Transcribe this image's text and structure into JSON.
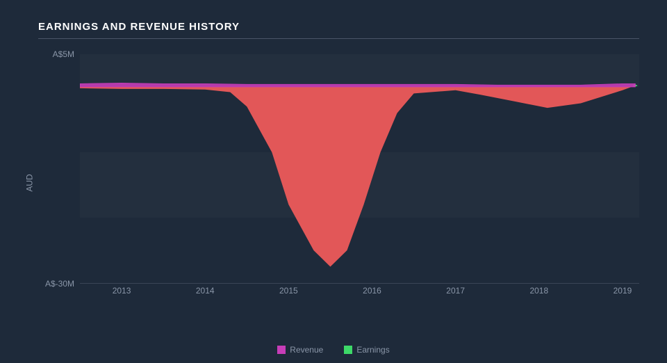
{
  "chart": {
    "type": "area",
    "title": "EARNINGS AND REVENUE HISTORY",
    "background_color": "#1e2a3a",
    "grid_band_color": "rgba(255,255,255,0.025)",
    "axis_text_color": "#8a96a8",
    "title_color": "#ffffff",
    "title_fontsize": 15,
    "label_fontsize": 12,
    "y_axis": {
      "label": "AUD",
      "min": -30,
      "max": 5,
      "ticks": [
        {
          "value": 5,
          "label": "A$5M"
        },
        {
          "value": -30,
          "label": "A$-30M"
        }
      ]
    },
    "x_axis": {
      "min": 2012.5,
      "max": 2019.2,
      "ticks": [
        {
          "value": 2013,
          "label": "2013"
        },
        {
          "value": 2014,
          "label": "2014"
        },
        {
          "value": 2015,
          "label": "2015"
        },
        {
          "value": 2016,
          "label": "2016"
        },
        {
          "value": 2017,
          "label": "2017"
        },
        {
          "value": 2018,
          "label": "2018"
        },
        {
          "value": 2019,
          "label": "2019"
        }
      ]
    },
    "grid_bands": [
      {
        "from": 5,
        "to": 0
      },
      {
        "from": -10,
        "to": -20
      }
    ],
    "series": [
      {
        "name": "Revenue",
        "color": "#c73db8",
        "fill_opacity": 0.9,
        "stroke_width": 1.5,
        "data": [
          {
            "x": 2012.5,
            "y": 0.5
          },
          {
            "x": 2013,
            "y": 0.6
          },
          {
            "x": 2013.5,
            "y": 0.5
          },
          {
            "x": 2014,
            "y": 0.5
          },
          {
            "x": 2014.5,
            "y": 0.4
          },
          {
            "x": 2015,
            "y": 0.4
          },
          {
            "x": 2015.5,
            "y": 0.4
          },
          {
            "x": 2016,
            "y": 0.4
          },
          {
            "x": 2016.5,
            "y": 0.4
          },
          {
            "x": 2017,
            "y": 0.4
          },
          {
            "x": 2017.5,
            "y": 0.3
          },
          {
            "x": 2018,
            "y": 0.3
          },
          {
            "x": 2018.5,
            "y": 0.3
          },
          {
            "x": 2019,
            "y": 0.5
          },
          {
            "x": 2019.15,
            "y": 0.5
          }
        ]
      },
      {
        "name": "Earnings",
        "color": "#3dd968",
        "legend_color": "#3dd968",
        "fill_color": "#ed5a5a",
        "fill_opacity": 0.95,
        "stroke_width": 1,
        "data": [
          {
            "x": 2012.5,
            "y": -0.2
          },
          {
            "x": 2013,
            "y": -0.3
          },
          {
            "x": 2013.5,
            "y": -0.3
          },
          {
            "x": 2014,
            "y": -0.4
          },
          {
            "x": 2014.3,
            "y": -0.8
          },
          {
            "x": 2014.5,
            "y": -3
          },
          {
            "x": 2014.8,
            "y": -10
          },
          {
            "x": 2015.0,
            "y": -18
          },
          {
            "x": 2015.3,
            "y": -25
          },
          {
            "x": 2015.5,
            "y": -27.5
          },
          {
            "x": 2015.7,
            "y": -25
          },
          {
            "x": 2015.9,
            "y": -18
          },
          {
            "x": 2016.1,
            "y": -10
          },
          {
            "x": 2016.3,
            "y": -4
          },
          {
            "x": 2016.5,
            "y": -1
          },
          {
            "x": 2017,
            "y": -0.5
          },
          {
            "x": 2017.3,
            "y": -1.2
          },
          {
            "x": 2017.7,
            "y": -2.2
          },
          {
            "x": 2018.1,
            "y": -3.2
          },
          {
            "x": 2018.5,
            "y": -2.5
          },
          {
            "x": 2019,
            "y": -0.5
          },
          {
            "x": 2019.15,
            "y": 0.2
          }
        ]
      }
    ],
    "legend": {
      "items": [
        {
          "label": "Revenue",
          "color": "#c73db8"
        },
        {
          "label": "Earnings",
          "color": "#3dd968"
        }
      ]
    }
  }
}
